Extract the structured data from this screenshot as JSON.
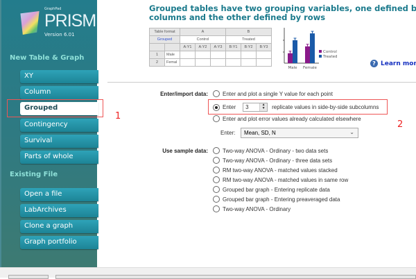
{
  "app": {
    "brand_small": "GraphPad",
    "brand": "PRISM",
    "version": "Version 6.01"
  },
  "sidebar": {
    "new_heading": "New Table & Graph",
    "new_items": [
      {
        "label": "XY"
      },
      {
        "label": "Column"
      },
      {
        "label": "Grouped",
        "selected": true
      },
      {
        "label": "Contingency"
      },
      {
        "label": "Survival"
      },
      {
        "label": "Parts of whole"
      }
    ],
    "existing_heading": "Existing File",
    "existing_items": [
      {
        "label": "Open a file"
      },
      {
        "label": "LabArchives"
      },
      {
        "label": "Clone a graph"
      },
      {
        "label": "Graph portfolio"
      }
    ]
  },
  "annotations": {
    "one": "1",
    "two": "2",
    "color": "#e22222"
  },
  "main": {
    "title": "Grouped tables have two grouping variables, one defined by columns and the other defined by rows",
    "preview_table": {
      "format_label": "Table format",
      "format_value": "Grouped",
      "group_a": "A",
      "group_b": "B",
      "a_name": "Control",
      "b_name": "Treated",
      "subcols": [
        "A:Y1",
        "A:Y2",
        "A:Y3",
        "B:Y1",
        "B:Y2",
        "B:Y3"
      ],
      "rows": [
        {
          "num": "1",
          "label": "Male"
        },
        {
          "num": "2",
          "label": "Femal"
        }
      ]
    },
    "preview_chart": {
      "categories": [
        "Male",
        "Female"
      ],
      "series": [
        {
          "name": "Control",
          "color": "#8a1a8a",
          "values": [
            1.3,
            2.2
          ]
        },
        {
          "name": "Treated",
          "color": "#1a5aa8",
          "values": [
            3.0,
            3.9
          ]
        }
      ]
    },
    "learn_more": "Learn more",
    "enter_label": "Enter/import data:",
    "enter_options": {
      "single": "Enter and plot a single Y value for each point",
      "replicate_prefix": "Enter",
      "replicate_value": "3",
      "replicate_suffix": "replicate values in side-by-side subcolumns",
      "error": "Enter and plot error values already calculated elsewhere"
    },
    "enter_dropdown_label": "Enter:",
    "enter_dropdown_value": "Mean, SD, N",
    "sample_label": "Use sample data:",
    "sample_options": [
      "Two-way ANOVA - Ordinary - two data sets",
      "Two-way ANOVA - Ordinary - three data sets",
      "RM two-way ANOVA - matched values stacked",
      "RM two-way ANOVA - matched values in same row",
      "Grouped bar graph - Entering replicate data",
      "Grouped bar graph - Entering preaveraged data",
      "Two-way ANOVA - Ordinary"
    ]
  }
}
